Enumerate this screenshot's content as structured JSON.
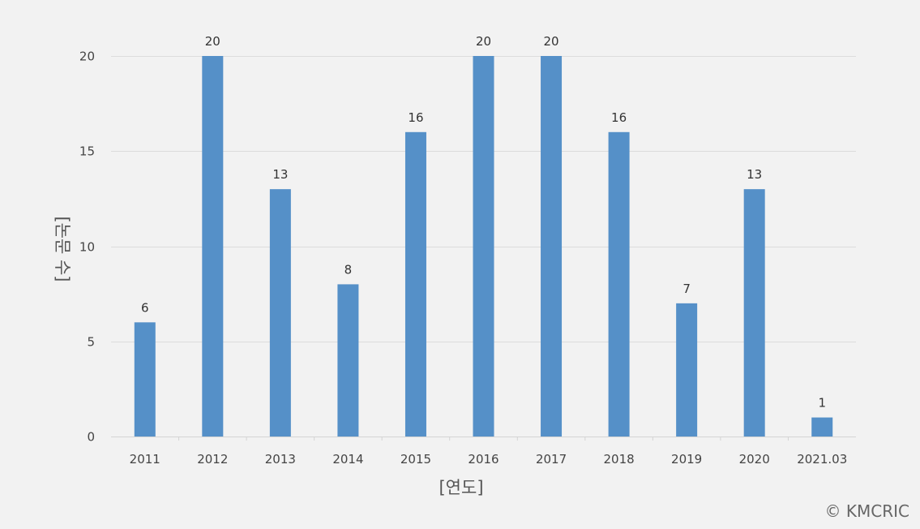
{
  "chart_data": {
    "type": "bar",
    "categories": [
      "2011",
      "2012",
      "2013",
      "2014",
      "2015",
      "2016",
      "2017",
      "2018",
      "2019",
      "2020",
      "2021.03"
    ],
    "values": [
      6,
      20,
      13,
      8,
      16,
      20,
      20,
      16,
      7,
      13,
      1
    ],
    "title": "",
    "xlabel": "[연도]",
    "ylabel": "[논문 수]",
    "ylim": [
      0,
      20
    ],
    "yticks": [
      0,
      5,
      10,
      15,
      20
    ],
    "grid": true,
    "legend": "none",
    "data_labels": true,
    "bar_color": "#5590c8"
  },
  "credit": "© KMCRIC"
}
